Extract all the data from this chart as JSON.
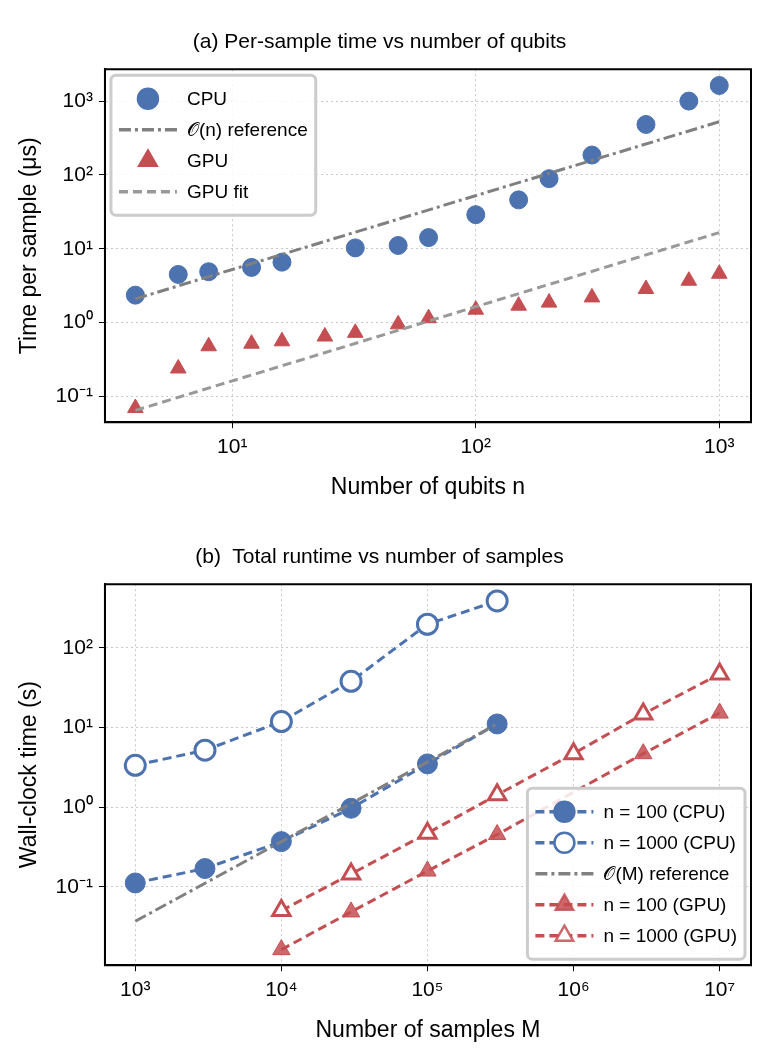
{
  "chart_data": [
    {
      "type": "scatter",
      "title": "(a) Per-sample time vs number of qubits",
      "xlabel": "Number of qubits n",
      "ylabel": "Time per sample (μs)",
      "log": "xy",
      "grid": true,
      "legend": "top left",
      "xlim": [
        3,
        1350
      ],
      "xticks": [
        {
          "value": 10,
          "label": "10¹"
        },
        {
          "value": 100,
          "label": "10²"
        },
        {
          "value": 1000,
          "label": "10³"
        }
      ],
      "ylim": [
        0.045,
        2700
      ],
      "yticks": [
        {
          "value": 0.1,
          "label": "10⁻¹"
        },
        {
          "value": 1,
          "label": "10⁰"
        },
        {
          "value": 10,
          "label": "10¹"
        },
        {
          "value": 100,
          "label": "10²"
        },
        {
          "value": 1000,
          "label": "10³"
        }
      ],
      "series": [
        {
          "name": "CPU",
          "type": "scatter",
          "marker": "circle",
          "color": "#4c72b0",
          "x": [
            4,
            6,
            8,
            12,
            16,
            32,
            48,
            64,
            100,
            150,
            200,
            300,
            500,
            750,
            1000
          ],
          "values": [
            2.36,
            4.5,
            4.9,
            5.6,
            6.6,
            10.3,
            11.1,
            14.2,
            29,
            46,
            89,
            186,
            482,
            1000,
            1625
          ]
        },
        {
          "name": "𝒪(n) reference",
          "type": "line",
          "marker": "none",
          "line_style": "dashdot",
          "color": "#808080",
          "x": [
            4,
            1000
          ],
          "values": [
            2.1,
            525
          ]
        },
        {
          "name": "GPU",
          "type": "scatter",
          "marker": "triangle",
          "color": "#c44e52",
          "x": [
            4,
            6,
            8,
            12,
            16,
            24,
            32,
            48,
            64,
            100,
            150,
            200,
            300,
            500,
            750,
            1000
          ],
          "values": [
            0.07,
            0.24,
            0.48,
            0.52,
            0.56,
            0.65,
            0.73,
            0.95,
            1.15,
            1.5,
            1.7,
            1.87,
            2.2,
            2.86,
            3.7,
            4.6
          ]
        },
        {
          "name": "GPU fit",
          "type": "line",
          "marker": "none",
          "line_style": "dashed",
          "color": "#999999",
          "x": [
            4,
            1000
          ],
          "values": [
            0.065,
            16.6
          ]
        }
      ]
    },
    {
      "type": "line",
      "title": "(b)  Total runtime vs number of samples",
      "xlabel": "Number of samples M",
      "ylabel": "Wall-clock time (s)",
      "log": "xy",
      "grid": true,
      "legend": "bottom right",
      "xlim": [
        620,
        16400000
      ],
      "xticks": [
        {
          "value": 1000,
          "label": "10³"
        },
        {
          "value": 10000,
          "label": "10⁴"
        },
        {
          "value": 100000,
          "label": "10⁵"
        },
        {
          "value": 1000000,
          "label": "10⁶"
        },
        {
          "value": 10000000,
          "label": "10⁷"
        }
      ],
      "ylim": [
        0.0104,
        630
      ],
      "yticks": [
        {
          "value": 0.1,
          "label": "10⁻¹"
        },
        {
          "value": 1,
          "label": "10⁰"
        },
        {
          "value": 10,
          "label": "10¹"
        },
        {
          "value": 100,
          "label": "10²"
        }
      ],
      "series": [
        {
          "name": "n = 100 (CPU)",
          "marker": "circle",
          "line_style": "dashed",
          "color": "#4c72b0",
          "x": [
            1000,
            3000,
            10000,
            30000,
            100000,
            300000
          ],
          "values": [
            0.112,
            0.17,
            0.37,
            0.97,
            3.5,
            11.1
          ]
        },
        {
          "name": "n = 1000 (CPU)",
          "marker": "circle-open",
          "line_style": "dashed",
          "color": "#4c72b0",
          "x": [
            1000,
            3000,
            10000,
            30000,
            100000,
            300000
          ],
          "values": [
            3.36,
            5.2,
            11.9,
            38,
            198,
            388
          ]
        },
        {
          "name": "𝒪(M) reference",
          "marker": "none",
          "line_style": "dashdot",
          "color": "#808080",
          "x": [
            1000,
            300000
          ],
          "values": [
            0.037,
            11.1
          ]
        },
        {
          "name": "n = 100 (GPU)",
          "marker": "triangle",
          "line_style": "dashed",
          "color": "#c44e52",
          "x": [
            10000,
            30000,
            100000,
            300000,
            1000000,
            3000000,
            10000000
          ],
          "values": [
            0.0163,
            0.0485,
            0.158,
            0.454,
            null,
            4.7,
            15.2
          ]
        },
        {
          "name": "n = 1000 (GPU)",
          "marker": "triangle-open",
          "line_style": "dashed",
          "color": "#c44e52",
          "x": [
            10000,
            30000,
            100000,
            300000,
            1000000,
            3000000,
            10000000
          ],
          "values": [
            0.0504,
            0.145,
            0.472,
            1.43,
            4.7,
            14.8,
            47
          ]
        }
      ]
    }
  ]
}
